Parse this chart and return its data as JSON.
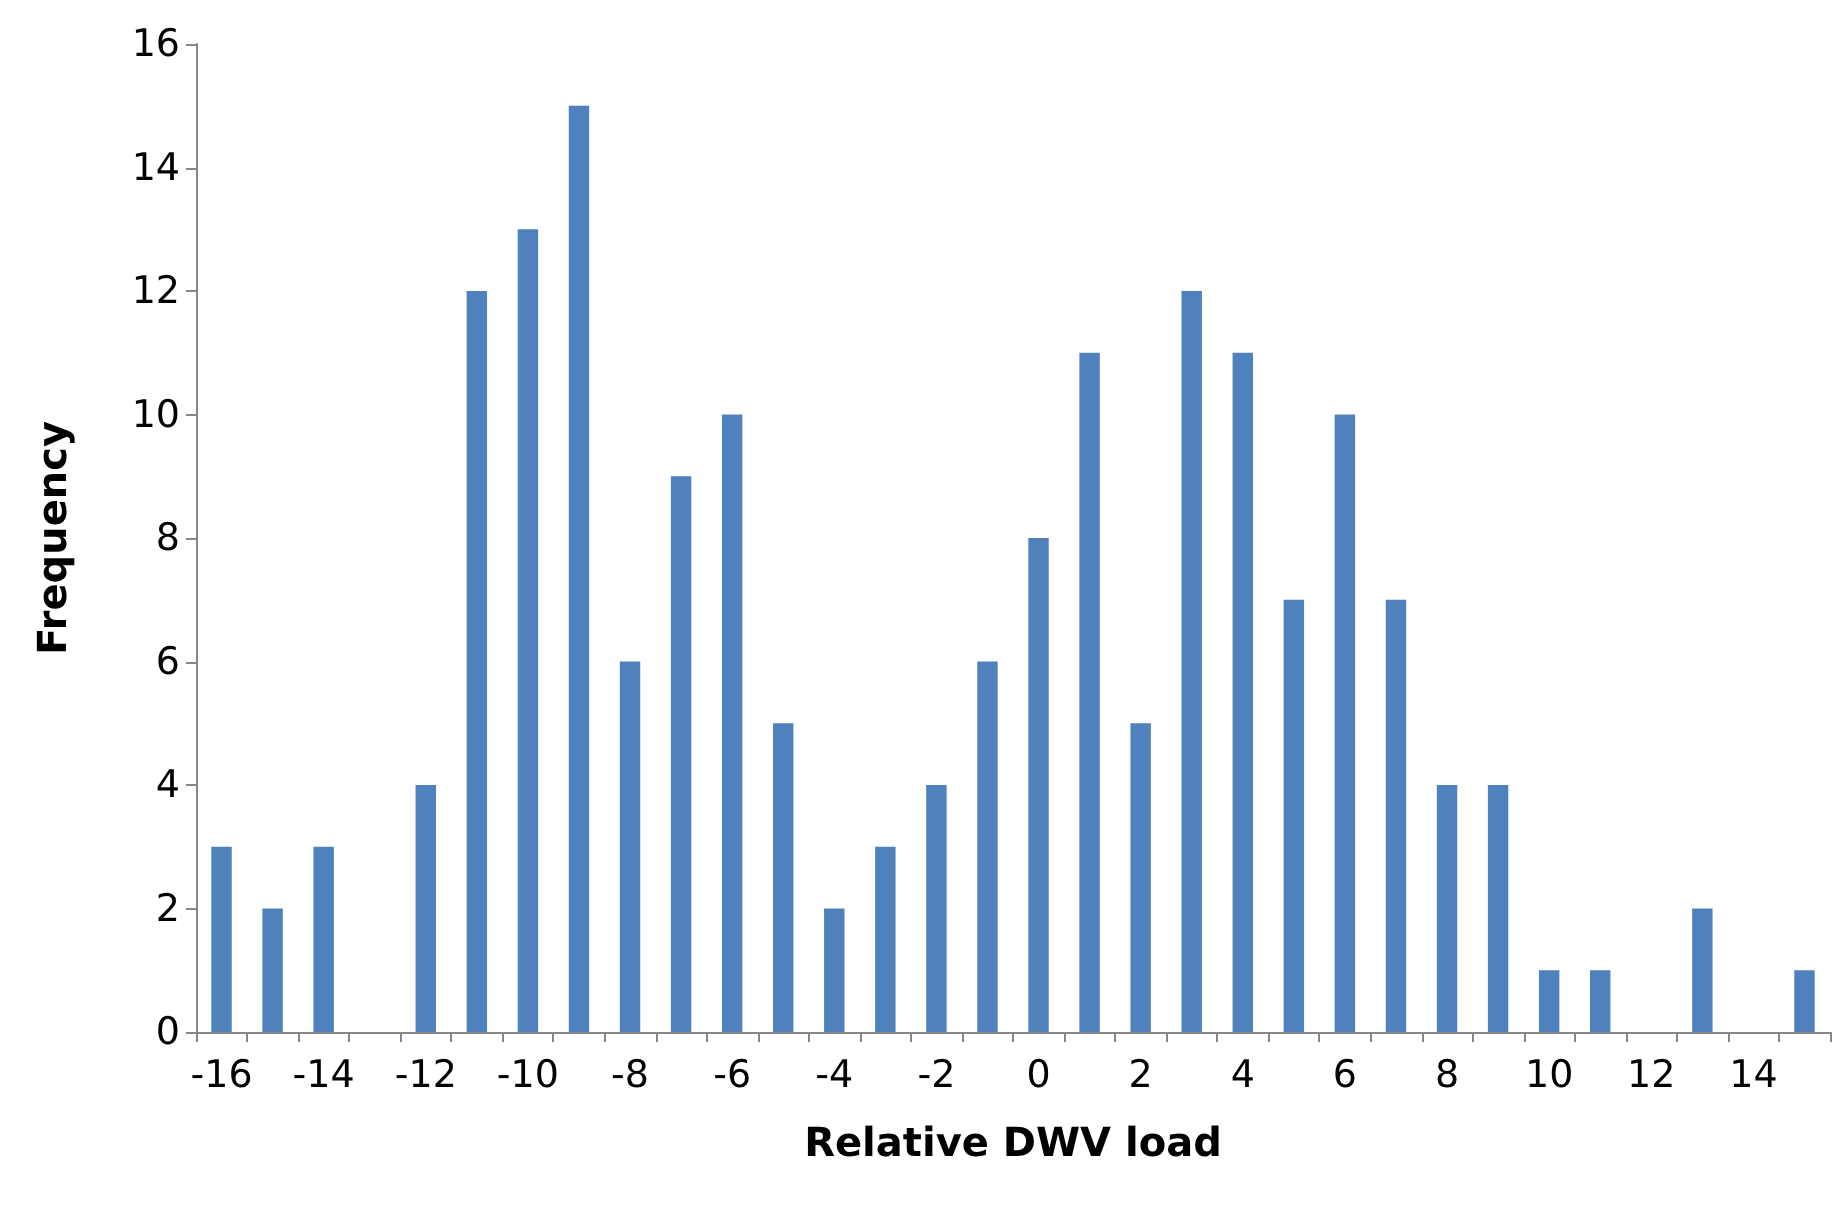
{
  "chart_data": {
    "type": "bar",
    "xlabel": "Relative DWV load",
    "ylabel": "Frequency",
    "categories": [
      "-16",
      null,
      "-14",
      null,
      "-12",
      null,
      "-10",
      null,
      "-8",
      null,
      "-6",
      null,
      "-4",
      null,
      "-2",
      null,
      "0",
      null,
      "2",
      null,
      "4",
      null,
      "6",
      null,
      "8",
      null,
      "10",
      null,
      "12",
      null,
      "14",
      null
    ],
    "values": [
      3,
      2,
      3,
      0,
      4,
      12,
      13,
      15,
      6,
      9,
      10,
      5,
      2,
      3,
      4,
      6,
      8,
      11,
      5,
      12,
      11,
      7,
      10,
      7,
      4,
      4,
      1,
      1,
      0,
      2,
      0,
      1
    ],
    "color": "#4f81bd",
    "ylim": [
      0,
      16
    ],
    "yticks": [
      0,
      2,
      4,
      6,
      8,
      10,
      12,
      14,
      16
    ],
    "grid": false
  }
}
